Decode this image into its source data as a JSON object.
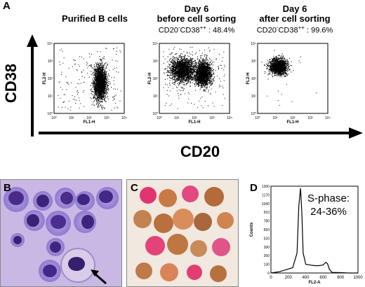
{
  "panels": {
    "A": {
      "letter": "A",
      "y_axis_label": "CD38",
      "x_axis_label": "CD20",
      "plots": [
        {
          "title": "Purified B cells",
          "subtitle": "",
          "xlabel": "FL1-H",
          "ylabel": "FL2-H"
        },
        {
          "title_line1": "Day 6",
          "title_line2": "before cell sorting",
          "subtitle_pre": "CD20",
          "subtitle_sup1": "-",
          "subtitle_mid": "CD38",
          "subtitle_sup2": "++",
          "subtitle_post": " : 48.4%",
          "xlabel": "FL1-H",
          "ylabel": "FL2-H"
        },
        {
          "title_line1": "Day 6",
          "title_line2": "after cell sorting",
          "subtitle_pre": "CD20",
          "subtitle_sup1": "-",
          "subtitle_mid": "CD38",
          "subtitle_sup2": "++",
          "subtitle_post": " : 99.6%",
          "xlabel": "FL1-H",
          "ylabel": "FL2-H"
        }
      ],
      "ticks": [
        "10⁰",
        "10¹",
        "10²",
        "10³",
        "10⁴"
      ]
    },
    "B": {
      "letter": "B"
    },
    "C": {
      "letter": "C"
    },
    "D": {
      "letter": "D",
      "annotation_line1": "S-phase:",
      "annotation_line2": "24-36%"
    }
  },
  "chart_data": [
    {
      "type": "scatter",
      "title": "Purified B cells",
      "xlabel": "FL1-H",
      "ylabel": "FL2-H",
      "scale": "log",
      "xlim": [
        1,
        10000
      ],
      "ylim": [
        1,
        10000
      ],
      "clusters": [
        {
          "x_center": 400,
          "y_center": 60,
          "note": "dense population"
        }
      ]
    },
    {
      "type": "scatter",
      "title": "Day 6 before cell sorting",
      "subtitle": "CD20-CD38++ : 48.4%",
      "xlabel": "FL1-H",
      "ylabel": "FL2-H",
      "scale": "log",
      "xlim": [
        1,
        10000
      ],
      "ylim": [
        1,
        10000
      ],
      "clusters": [
        {
          "x_center": 20,
          "y_center": 300
        },
        {
          "x_center": 300,
          "y_center": 200
        }
      ]
    },
    {
      "type": "scatter",
      "title": "Day 6 after cell sorting",
      "subtitle": "CD20-CD38++ : 99.6%",
      "xlabel": "FL1-H",
      "ylabel": "FL2-H",
      "scale": "log",
      "xlim": [
        1,
        10000
      ],
      "ylim": [
        1,
        10000
      ],
      "clusters": [
        {
          "x_center": 15,
          "y_center": 500
        }
      ]
    },
    {
      "type": "line",
      "xlabel": "FL2-A",
      "ylabel": "Counts",
      "xlim": [
        0,
        1000
      ],
      "ylim": [
        0,
        1300
      ],
      "x_ticks": [
        0,
        200,
        400,
        600,
        800,
        1000
      ],
      "y_ticks": [
        0,
        130,
        260,
        390,
        520,
        650,
        780,
        910,
        1040,
        1170,
        1300
      ],
      "annotation": "S-phase: 24-36%",
      "x": [
        0,
        100,
        200,
        250,
        300,
        320,
        340,
        355,
        370,
        400,
        450,
        500,
        550,
        600,
        630,
        650,
        670,
        700,
        800,
        900,
        1000
      ],
      "y": [
        0,
        20,
        60,
        80,
        300,
        1000,
        1270,
        900,
        300,
        130,
        120,
        110,
        110,
        120,
        160,
        140,
        60,
        10,
        5,
        0,
        0
      ]
    }
  ]
}
